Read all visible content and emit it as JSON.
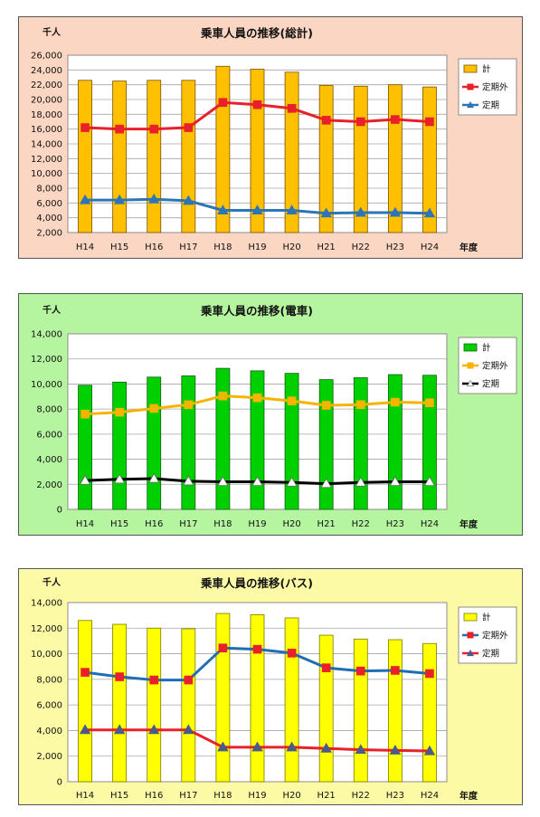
{
  "chart_data": [
    {
      "type": "bar",
      "title": "乗車人員の推移(総計)",
      "ylabel": "千人",
      "xlabel": "年度",
      "categories": [
        "H14",
        "H15",
        "H16",
        "H17",
        "H18",
        "H19",
        "H20",
        "H21",
        "H22",
        "H23",
        "H24"
      ],
      "ylim": [
        2000,
        26000
      ],
      "yticks": [
        "2,000",
        "4,000",
        "6,000",
        "8,000",
        "10,000",
        "12,000",
        "14,000",
        "16,000",
        "18,000",
        "20,000",
        "22,000",
        "24,000",
        "26,000"
      ],
      "grid": true,
      "legend": "right",
      "series": [
        {
          "name": "計",
          "kind": "bar",
          "color": "#ffc000",
          "edge": "#7a5200",
          "values": [
            22600,
            22500,
            22600,
            22600,
            24500,
            24100,
            23700,
            21900,
            21800,
            22000,
            21700
          ]
        },
        {
          "name": "定期外",
          "kind": "line",
          "color": "#e8202a",
          "marker": "square",
          "markerColor": "#e8202a",
          "values": [
            16200,
            16000,
            16000,
            16200,
            19600,
            19300,
            18800,
            17200,
            17000,
            17300,
            17000
          ]
        },
        {
          "name": "定期",
          "kind": "line",
          "color": "#2e75b6",
          "marker": "triangle",
          "markerColor": "#2e75b6",
          "values": [
            6400,
            6400,
            6500,
            6300,
            5000,
            5000,
            5000,
            4600,
            4700,
            4700,
            4600
          ]
        }
      ]
    },
    {
      "type": "bar",
      "title": "乗車人員の推移(電車)",
      "ylabel": "千人",
      "xlabel": "年度",
      "categories": [
        "H14",
        "H15",
        "H16",
        "H17",
        "H18",
        "H19",
        "H20",
        "H21",
        "H22",
        "H23",
        "H24"
      ],
      "ylim": [
        0,
        14000
      ],
      "yticks": [
        "0",
        "2,000",
        "4,000",
        "6,000",
        "8,000",
        "10,000",
        "12,000",
        "14,000"
      ],
      "grid": true,
      "legend": "right",
      "series": [
        {
          "name": "計",
          "kind": "bar",
          "color": "#00d000",
          "edge": "#106010",
          "values": [
            9900,
            10150,
            10550,
            10650,
            11250,
            11050,
            10850,
            10350,
            10500,
            10750,
            10700
          ]
        },
        {
          "name": "定期外",
          "kind": "line",
          "color": "#f4b400",
          "marker": "square",
          "markerColor": "#f4b400",
          "values": [
            7600,
            7750,
            8050,
            8350,
            9050,
            8900,
            8650,
            8300,
            8350,
            8550,
            8500
          ]
        },
        {
          "name": "定期",
          "kind": "line",
          "color": "#000000",
          "marker": "triangle",
          "markerColor": "#ffffff",
          "values": [
            2300,
            2400,
            2450,
            2250,
            2200,
            2200,
            2150,
            2050,
            2150,
            2200,
            2200
          ]
        }
      ]
    },
    {
      "type": "bar",
      "title": "乗車人員の推移(バス)",
      "ylabel": "千人",
      "xlabel": "年度",
      "categories": [
        "H14",
        "H15",
        "H16",
        "H17",
        "H18",
        "H19",
        "H20",
        "H21",
        "H22",
        "H23",
        "H24"
      ],
      "ylim": [
        0,
        14000
      ],
      "yticks": [
        "0",
        "2,000",
        "4,000",
        "6,000",
        "8,000",
        "10,000",
        "12,000",
        "14,000"
      ],
      "grid": true,
      "legend": "right",
      "series": [
        {
          "name": "計",
          "kind": "bar",
          "color": "#ffff00",
          "edge": "#7a7a00",
          "values": [
            12600,
            12300,
            12000,
            11950,
            13150,
            13050,
            12800,
            11450,
            11150,
            11100,
            10800
          ]
        },
        {
          "name": "定期外",
          "kind": "line",
          "color": "#1f6db3",
          "marker": "square",
          "markerColor": "#e8202a",
          "values": [
            8550,
            8200,
            7950,
            7950,
            10450,
            10350,
            10050,
            8900,
            8650,
            8700,
            8450
          ]
        },
        {
          "name": "定期",
          "kind": "line",
          "color": "#e8202a",
          "marker": "triangle",
          "markerColor": "#4a5a8a",
          "values": [
            4050,
            4050,
            4050,
            4050,
            2700,
            2700,
            2700,
            2600,
            2500,
            2450,
            2400
          ]
        }
      ]
    }
  ]
}
